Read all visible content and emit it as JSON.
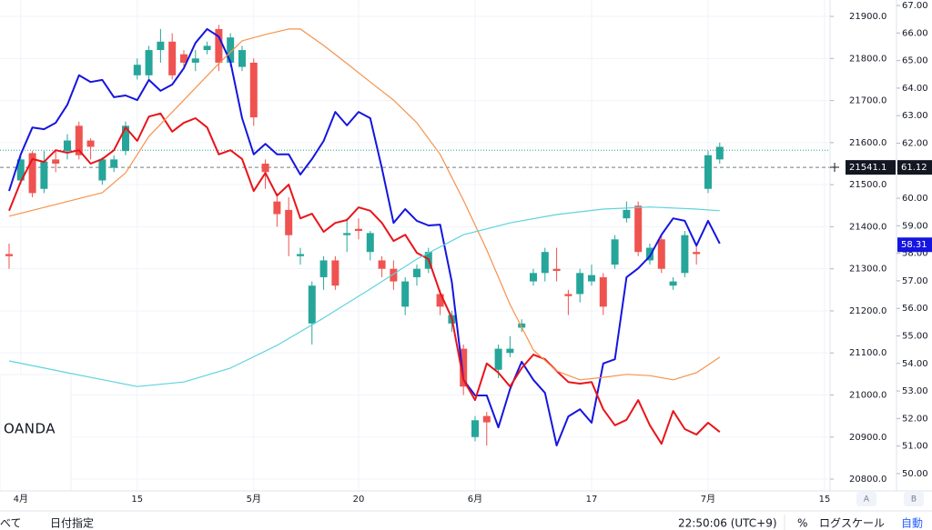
{
  "chart_data": {
    "type": "candlestick",
    "xlim": [
      -0.78,
      70.47
    ],
    "ylim": [
      20772,
      21939
    ],
    "y2lim": [
      49.37,
      67.2
    ],
    "up_color": "#26a69a",
    "down_color": "#ef5350",
    "grid": true,
    "xticks": [
      {
        "value": 1,
        "label": "4月"
      },
      {
        "value": 11,
        "label": "15"
      },
      {
        "value": 21,
        "label": "5月"
      },
      {
        "value": 30,
        "label": "20"
      },
      {
        "value": 40,
        "label": "6月"
      },
      {
        "value": 50,
        "label": "17"
      },
      {
        "value": 60,
        "label": "7月"
      },
      {
        "value": 70,
        "label": "15"
      }
    ],
    "yticks": [
      {
        "value": 20800,
        "label": "20800.0"
      },
      {
        "value": 20900,
        "label": "20900.0"
      },
      {
        "value": 21000,
        "label": "21000.0"
      },
      {
        "value": 21100,
        "label": "21100.0"
      },
      {
        "value": 21200,
        "label": "21200.0"
      },
      {
        "value": 21300,
        "label": "21300.0"
      },
      {
        "value": 21400,
        "label": "21400.0"
      },
      {
        "value": 21500,
        "label": "21500.0"
      },
      {
        "value": 21600,
        "label": "21600.0"
      },
      {
        "value": 21700,
        "label": "21700.0"
      },
      {
        "value": 21800,
        "label": "21800.0"
      },
      {
        "value": 21900,
        "label": "21900.0"
      }
    ],
    "y2ticks": [
      {
        "value": 50,
        "label": "50.00"
      },
      {
        "value": 51,
        "label": "51.00"
      },
      {
        "value": 52,
        "label": "52.00"
      },
      {
        "value": 53,
        "label": "53.00"
      },
      {
        "value": 54,
        "label": "54.00"
      },
      {
        "value": 55,
        "label": "55.00"
      },
      {
        "value": 56,
        "label": "56.00"
      },
      {
        "value": 57,
        "label": "57.00"
      },
      {
        "value": 58,
        "label": "58.00"
      },
      {
        "value": 59,
        "label": "59.00"
      },
      {
        "value": 60,
        "label": "60.00"
      },
      {
        "value": 61,
        "label": "61.00"
      },
      {
        "value": 62,
        "label": "62.00"
      },
      {
        "value": 63,
        "label": "63.00"
      },
      {
        "value": 64,
        "label": "64.00"
      },
      {
        "value": 65,
        "label": "65.00"
      },
      {
        "value": 66,
        "label": "66.00"
      },
      {
        "value": 67,
        "label": "67.00"
      }
    ],
    "open": [
      21335,
      21510,
      21575,
      21490,
      21560,
      21580,
      21640,
      21605,
      21510,
      21540,
      21580,
      21760,
      21760,
      21820,
      21840,
      21810,
      21790,
      21820,
      21870,
      21790,
      21780,
      21790,
      21550,
      21460,
      21440,
      21330,
      21170,
      21280,
      21320,
      21380,
      21395,
      21340,
      21320,
      21300,
      21210,
      21280,
      21300,
      21240,
      21170,
      21110,
      20900,
      20950,
      21060,
      21100,
      21160,
      21270,
      21290,
      21300,
      21240,
      21240,
      21270,
      21280,
      21310,
      21420,
      21450,
      21320,
      21370,
      21260,
      21290,
      21340,
      21490,
      21560
    ],
    "high": [
      21360,
      21570,
      21580,
      21580,
      21580,
      21620,
      21650,
      21610,
      21565,
      21570,
      21650,
      21800,
      21830,
      21870,
      21860,
      21820,
      21820,
      21840,
      21880,
      21860,
      21830,
      21800,
      21560,
      21480,
      21470,
      21350,
      21270,
      21330,
      21330,
      21420,
      21420,
      21390,
      21330,
      21320,
      21280,
      21310,
      21350,
      21250,
      21200,
      21120,
      20950,
      20960,
      21120,
      21140,
      21180,
      21300,
      21350,
      21350,
      21250,
      21300,
      21310,
      21290,
      21380,
      21460,
      21460,
      21360,
      21380,
      21280,
      21390,
      21360,
      21580,
      21600
    ],
    "low": [
      21300,
      21500,
      21470,
      21480,
      21530,
      21560,
      21560,
      21560,
      21500,
      21530,
      21570,
      21750,
      21750,
      21790,
      21750,
      21780,
      21770,
      21810,
      21770,
      21780,
      21770,
      21640,
      21490,
      21400,
      21330,
      21310,
      21120,
      21250,
      21250,
      21340,
      21370,
      21320,
      21280,
      21250,
      21190,
      21260,
      21290,
      21190,
      21150,
      21000,
      20890,
      20880,
      21040,
      21090,
      21150,
      21260,
      21270,
      21270,
      21190,
      21220,
      21260,
      21190,
      21300,
      21410,
      21330,
      21310,
      21290,
      21250,
      21280,
      21310,
      21480,
      21550
    ],
    "close": [
      21330,
      21560,
      21480,
      21555,
      21550,
      21605,
      21570,
      21590,
      21560,
      21560,
      21640,
      21785,
      21820,
      21840,
      21760,
      21790,
      21800,
      21830,
      21790,
      21850,
      21820,
      21660,
      21530,
      21430,
      21380,
      21335,
      21260,
      21320,
      21260,
      21385,
      21390,
      21385,
      21300,
      21270,
      21270,
      21300,
      21340,
      21210,
      21190,
      21020,
      20940,
      20935,
      21110,
      21110,
      21170,
      21290,
      21340,
      21295,
      21235,
      21290,
      21285,
      21210,
      21370,
      21440,
      21340,
      21350,
      21300,
      21270,
      21380,
      21335,
      21570,
      21590
    ],
    "lines": [
      {
        "color": "#1515e0",
        "values": [
          21485,
          21572,
          21636,
          21632,
          21647,
          21690,
          21760,
          21744,
          21749,
          21708,
          21712,
          21701,
          21749,
          21723,
          21738,
          21777,
          21837,
          21870,
          21852,
          21792,
          21658,
          21572,
          21597,
          21572,
          21572,
          21524,
          21561,
          21604,
          21673,
          21641,
          21673,
          21658,
          21539,
          21409,
          21442,
          21414,
          21403,
          21405,
          21269,
          21036,
          20999,
          20999,
          20923,
          21014,
          21079,
          21036,
          21005,
          20880,
          20949,
          20966,
          20934,
          21075,
          21085,
          21280,
          21301,
          21330,
          21381,
          21420,
          21414,
          21355,
          21414,
          21360
        ]
      },
      {
        "color": "#e8141a",
        "values": [
          21438,
          21507,
          21561,
          21554,
          21582,
          21576,
          21582,
          21550,
          21561,
          21582,
          21636,
          21604,
          21662,
          21669,
          21626,
          21647,
          21658,
          21636,
          21572,
          21582,
          21561,
          21485,
          21528,
          21474,
          21500,
          21420,
          21431,
          21388,
          21409,
          21416,
          21446,
          21438,
          21409,
          21366,
          21381,
          21338,
          21323,
          21243,
          21183,
          21036,
          20988,
          21075,
          21053,
          21020,
          21064,
          21096,
          21085,
          21057,
          21031,
          21027,
          21031,
          20966,
          20928,
          20941,
          20988,
          20928,
          20884,
          20962,
          20919,
          20906,
          20934,
          20912
        ]
      },
      {
        "color": "#f7924c",
        "x": [
          0,
          4,
          8,
          10,
          12,
          15,
          18,
          20,
          22,
          24,
          25,
          27,
          29,
          31,
          33,
          35,
          37,
          39,
          41,
          43,
          45,
          47,
          49,
          51,
          53,
          55,
          57,
          59,
          61
        ],
        "values": [
          21425,
          21453,
          21481,
          21528,
          21615,
          21701,
          21788,
          21842,
          21857,
          21870,
          21870,
          21831,
          21788,
          21744,
          21701,
          21647,
          21572,
          21463,
          21345,
          21215,
          21107,
          21057,
          21036,
          21042,
          21049,
          21046,
          21036,
          21053,
          21090
        ]
      },
      {
        "color": "#5fd3dd",
        "x": [
          0,
          5,
          11,
          15,
          19,
          23,
          27,
          31,
          35,
          39,
          43,
          47,
          51,
          55,
          59,
          61
        ],
        "values": [
          21081,
          21053,
          21020,
          21031,
          21064,
          21118,
          21183,
          21252,
          21323,
          21381,
          21409,
          21429,
          21442,
          21447,
          21442,
          21438
        ]
      }
    ],
    "price_line": {
      "value": 21582,
      "color": "#26a69a"
    },
    "last_price": {
      "value": 21541.1,
      "label": "21541.1"
    },
    "y2_labels": [
      {
        "value": 61.12,
        "label": "61.12",
        "color": "#131722"
      },
      {
        "value": 58.31,
        "label": "58.31",
        "color": "#1515e0"
      }
    ],
    "logo": "OANDA",
    "axis_buttons": [
      "A",
      "B"
    ],
    "status": {
      "left": [
        "べて",
        "日付指定"
      ],
      "time": "22:50:06 (UTC+9)",
      "percent": "%",
      "log": "ログスケール",
      "auto": "自動"
    }
  }
}
